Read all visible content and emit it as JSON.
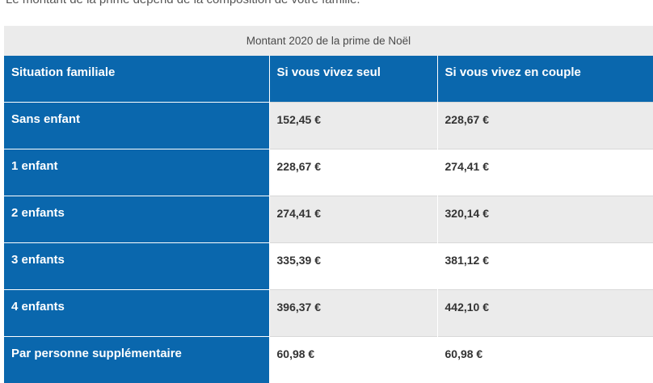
{
  "intro_text": "Le montant de la prime dépend de la composition de votre famille.",
  "table": {
    "caption": "Montant 2020 de la prime de Noël",
    "headers": [
      "Situation familiale",
      "Si vous vivez seul",
      "Si vous vivez en couple"
    ],
    "rows": [
      {
        "situation": "Sans enfant",
        "seul": "152,45 €",
        "couple": "228,67 €"
      },
      {
        "situation": "1 enfant",
        "seul": "228,67 €",
        "couple": "274,41 €"
      },
      {
        "situation": "2 enfants",
        "seul": "274,41 €",
        "couple": "320,14 €"
      },
      {
        "situation": "3 enfants",
        "seul": "335,39 €",
        "couple": "381,12 €"
      },
      {
        "situation": "4 enfants",
        "seul": "396,37 €",
        "couple": "442,10 €"
      },
      {
        "situation": "Par personne supplémentaire",
        "seul": "60,98 €",
        "couple": "60,98 €"
      }
    ]
  },
  "colors": {
    "header_blue": "#0a67ad",
    "stripe_gray": "#ebebeb"
  }
}
